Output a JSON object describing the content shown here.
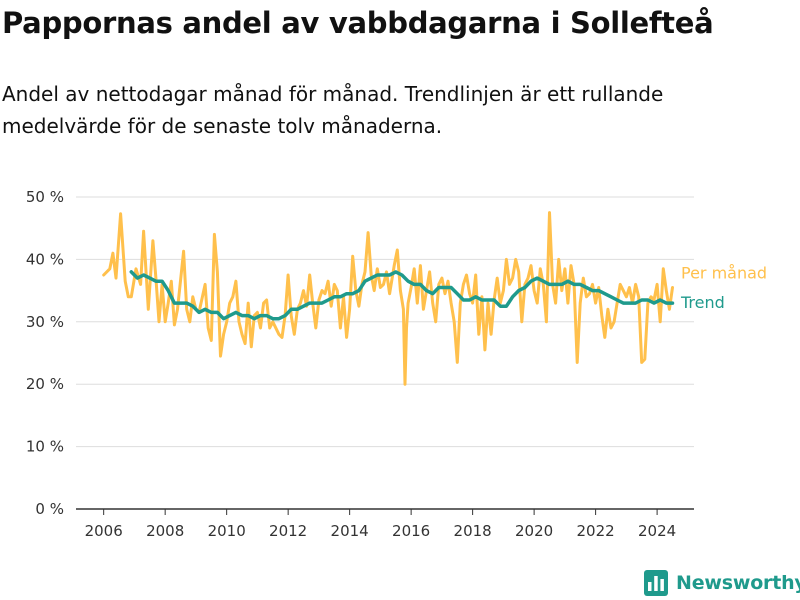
{
  "header": {
    "title": "Pappornas andel av vabbdagarna i Sollefteå",
    "subtitle": "Andel av nettodagar månad för månad. Trendlinjen är ett rullande medelvärde för de senaste tolv månaderna."
  },
  "branding": {
    "logo_text": "Newsworthy",
    "logo_icon": "bar-chart-icon",
    "color": "#1f9a8c"
  },
  "chart_data": {
    "type": "line",
    "title": "Pappornas andel av vabbdagarna i Sollefteå",
    "subtitle": "Andel av nettodagar månad för månad. Trendlinjen är ett rullande medelvärde för de senaste tolv månaderna.",
    "xlabel": "",
    "ylabel": "",
    "xlim": [
      2005.1,
      2025.2
    ],
    "ylim": [
      0,
      50
    ],
    "x_ticks": [
      2006,
      2008,
      2010,
      2012,
      2014,
      2016,
      2018,
      2020,
      2022,
      2024
    ],
    "y_ticks": [
      0,
      10,
      20,
      30,
      40,
      50
    ],
    "y_tick_labels": [
      "0 %",
      "10 %",
      "20 %",
      "30 %",
      "40 %",
      "50 %"
    ],
    "grid": "horizontal",
    "legend": "direct labels at line ends (right)",
    "series": [
      {
        "name": "Per månad",
        "color": "#ffc04c",
        "points": [
          [
            2006.0,
            37.5
          ],
          [
            2006.2,
            38.5
          ],
          [
            2006.3,
            41.0
          ],
          [
            2006.4,
            37.0
          ],
          [
            2006.55,
            47.3
          ],
          [
            2006.7,
            36.5
          ],
          [
            2006.8,
            34.0
          ],
          [
            2006.9,
            34.0
          ],
          [
            2007.05,
            38.5
          ],
          [
            2007.2,
            36.0
          ],
          [
            2007.3,
            44.5
          ],
          [
            2007.45,
            32.0
          ],
          [
            2007.6,
            43.0
          ],
          [
            2007.7,
            37.0
          ],
          [
            2007.8,
            30.0
          ],
          [
            2007.9,
            36.0
          ],
          [
            2008.0,
            30.0
          ],
          [
            2008.1,
            33.0
          ],
          [
            2008.2,
            36.5
          ],
          [
            2008.3,
            29.5
          ],
          [
            2008.4,
            32.0
          ],
          [
            2008.6,
            41.3
          ],
          [
            2008.7,
            32.0
          ],
          [
            2008.8,
            30.0
          ],
          [
            2008.9,
            34.0
          ],
          [
            2009.0,
            32.0
          ],
          [
            2009.1,
            31.5
          ],
          [
            2009.3,
            36.0
          ],
          [
            2009.4,
            29.0
          ],
          [
            2009.5,
            27.0
          ],
          [
            2009.6,
            44.0
          ],
          [
            2009.7,
            38.0
          ],
          [
            2009.8,
            24.5
          ],
          [
            2009.9,
            28.0
          ],
          [
            2010.0,
            30.0
          ],
          [
            2010.1,
            33.0
          ],
          [
            2010.2,
            34.0
          ],
          [
            2010.3,
            36.5
          ],
          [
            2010.4,
            30.0
          ],
          [
            2010.5,
            28.0
          ],
          [
            2010.6,
            26.5
          ],
          [
            2010.7,
            33.0
          ],
          [
            2010.8,
            26.0
          ],
          [
            2010.9,
            31.0
          ],
          [
            2011.0,
            31.5
          ],
          [
            2011.1,
            29.0
          ],
          [
            2011.2,
            33.0
          ],
          [
            2011.3,
            33.5
          ],
          [
            2011.4,
            29.0
          ],
          [
            2011.5,
            30.0
          ],
          [
            2011.7,
            28.0
          ],
          [
            2011.8,
            27.5
          ],
          [
            2011.9,
            31.0
          ],
          [
            2012.0,
            37.5
          ],
          [
            2012.1,
            31.0
          ],
          [
            2012.2,
            28.0
          ],
          [
            2012.3,
            32.0
          ],
          [
            2012.4,
            33.0
          ],
          [
            2012.5,
            35.0
          ],
          [
            2012.6,
            32.5
          ],
          [
            2012.7,
            37.5
          ],
          [
            2012.8,
            33.0
          ],
          [
            2012.9,
            29.0
          ],
          [
            2013.0,
            33.5
          ],
          [
            2013.1,
            35.0
          ],
          [
            2013.2,
            34.5
          ],
          [
            2013.3,
            36.5
          ],
          [
            2013.4,
            32.5
          ],
          [
            2013.5,
            36.0
          ],
          [
            2013.6,
            35.0
          ],
          [
            2013.7,
            29.0
          ],
          [
            2013.8,
            34.0
          ],
          [
            2013.9,
            27.5
          ],
          [
            2014.0,
            32.0
          ],
          [
            2014.1,
            40.5
          ],
          [
            2014.2,
            35.0
          ],
          [
            2014.3,
            32.5
          ],
          [
            2014.4,
            36.0
          ],
          [
            2014.5,
            38.0
          ],
          [
            2014.6,
            44.3
          ],
          [
            2014.7,
            37.5
          ],
          [
            2014.8,
            35.0
          ],
          [
            2014.9,
            38.5
          ],
          [
            2015.0,
            35.5
          ],
          [
            2015.1,
            36.0
          ],
          [
            2015.2,
            38.0
          ],
          [
            2015.3,
            34.5
          ],
          [
            2015.45,
            39.0
          ],
          [
            2015.55,
            41.5
          ],
          [
            2015.65,
            35.0
          ],
          [
            2015.75,
            32.0
          ],
          [
            2015.8,
            20.0
          ],
          [
            2015.85,
            29.0
          ],
          [
            2015.9,
            33.0
          ],
          [
            2016.0,
            35.5
          ],
          [
            2016.1,
            38.5
          ],
          [
            2016.2,
            33.0
          ],
          [
            2016.3,
            39.0
          ],
          [
            2016.4,
            32.0
          ],
          [
            2016.5,
            35.0
          ],
          [
            2016.6,
            38.0
          ],
          [
            2016.7,
            33.0
          ],
          [
            2016.8,
            30.0
          ],
          [
            2016.9,
            36.0
          ],
          [
            2017.0,
            37.0
          ],
          [
            2017.1,
            34.5
          ],
          [
            2017.2,
            36.5
          ],
          [
            2017.3,
            33.0
          ],
          [
            2017.4,
            30.0
          ],
          [
            2017.5,
            23.5
          ],
          [
            2017.6,
            33.0
          ],
          [
            2017.7,
            36.0
          ],
          [
            2017.8,
            37.5
          ],
          [
            2017.9,
            34.5
          ],
          [
            2018.0,
            33.0
          ],
          [
            2018.1,
            37.5
          ],
          [
            2018.2,
            28.0
          ],
          [
            2018.3,
            34.0
          ],
          [
            2018.4,
            25.5
          ],
          [
            2018.5,
            33.0
          ],
          [
            2018.6,
            28.0
          ],
          [
            2018.7,
            33.5
          ],
          [
            2018.8,
            37.0
          ],
          [
            2018.9,
            33.0
          ],
          [
            2019.0,
            35.0
          ],
          [
            2019.1,
            40.0
          ],
          [
            2019.2,
            36.0
          ],
          [
            2019.3,
            37.0
          ],
          [
            2019.4,
            40.0
          ],
          [
            2019.5,
            38.0
          ],
          [
            2019.6,
            30.0
          ],
          [
            2019.7,
            36.0
          ],
          [
            2019.8,
            37.0
          ],
          [
            2019.9,
            39.0
          ],
          [
            2020.0,
            35.0
          ],
          [
            2020.1,
            33.0
          ],
          [
            2020.2,
            38.5
          ],
          [
            2020.3,
            36.0
          ],
          [
            2020.4,
            30.0
          ],
          [
            2020.5,
            47.5
          ],
          [
            2020.6,
            36.0
          ],
          [
            2020.7,
            33.0
          ],
          [
            2020.8,
            40.0
          ],
          [
            2020.9,
            35.0
          ],
          [
            2021.0,
            38.5
          ],
          [
            2021.1,
            33.0
          ],
          [
            2021.2,
            39.0
          ],
          [
            2021.3,
            36.0
          ],
          [
            2021.4,
            23.5
          ],
          [
            2021.5,
            33.0
          ],
          [
            2021.6,
            37.0
          ],
          [
            2021.7,
            34.0
          ],
          [
            2021.8,
            34.5
          ],
          [
            2021.9,
            36.0
          ],
          [
            2022.0,
            33.0
          ],
          [
            2022.1,
            35.5
          ],
          [
            2022.2,
            31.0
          ],
          [
            2022.3,
            27.5
          ],
          [
            2022.4,
            32.0
          ],
          [
            2022.5,
            29.0
          ],
          [
            2022.6,
            30.0
          ],
          [
            2022.7,
            33.0
          ],
          [
            2022.8,
            36.0
          ],
          [
            2022.9,
            35.0
          ],
          [
            2023.0,
            34.0
          ],
          [
            2023.1,
            35.5
          ],
          [
            2023.2,
            33.0
          ],
          [
            2023.3,
            36.0
          ],
          [
            2023.4,
            34.0
          ],
          [
            2023.5,
            23.5
          ],
          [
            2023.6,
            24.0
          ],
          [
            2023.7,
            33.0
          ],
          [
            2023.8,
            34.0
          ],
          [
            2023.9,
            33.5
          ],
          [
            2024.0,
            36.0
          ],
          [
            2024.1,
            30.0
          ],
          [
            2024.2,
            38.5
          ],
          [
            2024.3,
            35.0
          ],
          [
            2024.4,
            32.0
          ],
          [
            2024.5,
            35.5
          ]
        ]
      },
      {
        "name": "Trend",
        "color": "#1f9a8c",
        "points": [
          [
            2006.9,
            38.0
          ],
          [
            2007.1,
            37.0
          ],
          [
            2007.3,
            37.5
          ],
          [
            2007.5,
            37.0
          ],
          [
            2007.7,
            36.5
          ],
          [
            2007.9,
            36.5
          ],
          [
            2008.1,
            35.0
          ],
          [
            2008.3,
            33.0
          ],
          [
            2008.5,
            33.0
          ],
          [
            2008.7,
            33.0
          ],
          [
            2008.9,
            32.5
          ],
          [
            2009.1,
            31.5
          ],
          [
            2009.3,
            32.0
          ],
          [
            2009.5,
            31.5
          ],
          [
            2009.7,
            31.5
          ],
          [
            2009.9,
            30.5
          ],
          [
            2010.1,
            31.0
          ],
          [
            2010.3,
            31.5
          ],
          [
            2010.5,
            31.0
          ],
          [
            2010.7,
            31.0
          ],
          [
            2010.9,
            30.5
          ],
          [
            2011.1,
            31.0
          ],
          [
            2011.3,
            31.0
          ],
          [
            2011.5,
            30.5
          ],
          [
            2011.7,
            30.5
          ],
          [
            2011.9,
            31.0
          ],
          [
            2012.1,
            32.0
          ],
          [
            2012.3,
            32.0
          ],
          [
            2012.5,
            32.5
          ],
          [
            2012.7,
            33.0
          ],
          [
            2012.9,
            33.0
          ],
          [
            2013.1,
            33.0
          ],
          [
            2013.3,
            33.5
          ],
          [
            2013.5,
            34.0
          ],
          [
            2013.7,
            34.0
          ],
          [
            2013.9,
            34.5
          ],
          [
            2014.1,
            34.5
          ],
          [
            2014.3,
            35.0
          ],
          [
            2014.5,
            36.5
          ],
          [
            2014.7,
            37.0
          ],
          [
            2014.9,
            37.5
          ],
          [
            2015.1,
            37.5
          ],
          [
            2015.3,
            37.5
          ],
          [
            2015.5,
            38.0
          ],
          [
            2015.7,
            37.5
          ],
          [
            2015.9,
            36.5
          ],
          [
            2016.1,
            36.0
          ],
          [
            2016.3,
            36.0
          ],
          [
            2016.5,
            35.0
          ],
          [
            2016.7,
            34.5
          ],
          [
            2016.9,
            35.5
          ],
          [
            2017.1,
            35.5
          ],
          [
            2017.3,
            35.5
          ],
          [
            2017.5,
            34.5
          ],
          [
            2017.7,
            33.5
          ],
          [
            2017.9,
            33.5
          ],
          [
            2018.1,
            34.0
          ],
          [
            2018.3,
            33.5
          ],
          [
            2018.5,
            33.5
          ],
          [
            2018.7,
            33.5
          ],
          [
            2018.9,
            32.5
          ],
          [
            2019.1,
            32.5
          ],
          [
            2019.3,
            34.0
          ],
          [
            2019.5,
            35.0
          ],
          [
            2019.7,
            35.5
          ],
          [
            2019.9,
            36.5
          ],
          [
            2020.1,
            37.0
          ],
          [
            2020.3,
            36.5
          ],
          [
            2020.5,
            36.0
          ],
          [
            2020.7,
            36.0
          ],
          [
            2020.9,
            36.0
          ],
          [
            2021.1,
            36.5
          ],
          [
            2021.3,
            36.0
          ],
          [
            2021.5,
            36.0
          ],
          [
            2021.7,
            35.5
          ],
          [
            2021.9,
            35.0
          ],
          [
            2022.1,
            35.0
          ],
          [
            2022.3,
            34.5
          ],
          [
            2022.5,
            34.0
          ],
          [
            2022.7,
            33.5
          ],
          [
            2022.9,
            33.0
          ],
          [
            2023.1,
            33.0
          ],
          [
            2023.3,
            33.0
          ],
          [
            2023.5,
            33.5
          ],
          [
            2023.7,
            33.5
          ],
          [
            2023.9,
            33.0
          ],
          [
            2024.1,
            33.5
          ],
          [
            2024.3,
            33.0
          ],
          [
            2024.5,
            33.0
          ]
        ]
      }
    ]
  }
}
